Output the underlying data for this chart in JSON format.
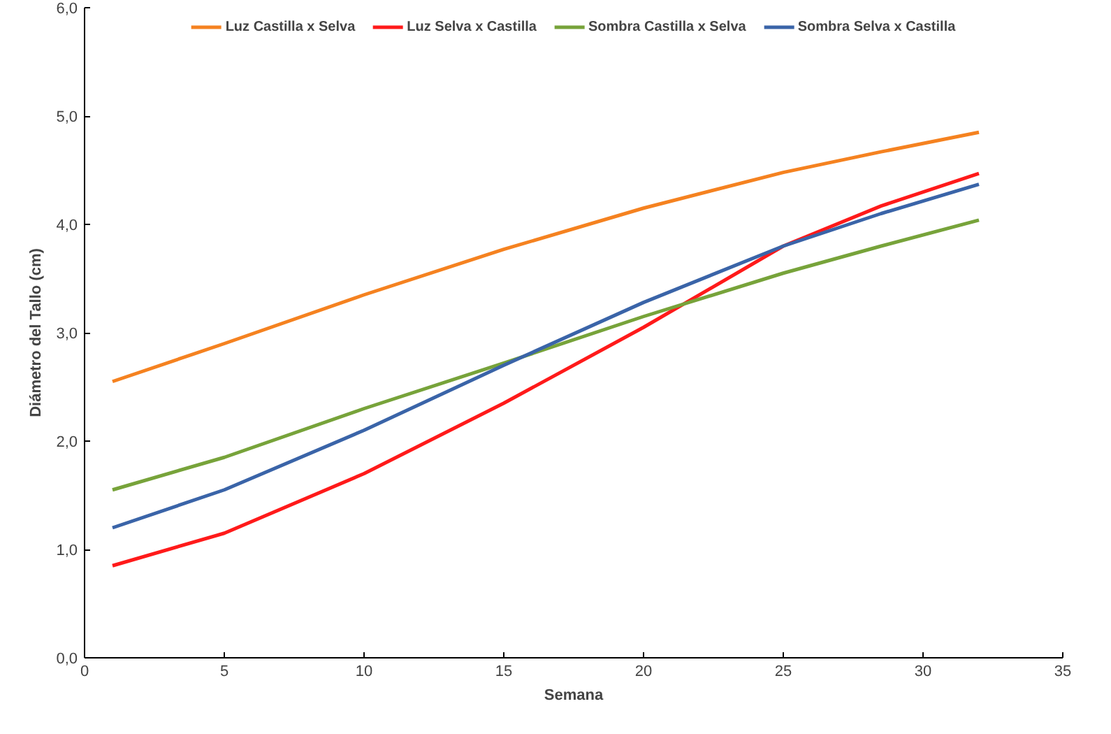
{
  "chart_data": {
    "type": "line",
    "xlabel": "Semana",
    "ylabel": "Diámetro del Tallo (cm)",
    "x": [
      1,
      5,
      10,
      15,
      20,
      25,
      28.5,
      32
    ],
    "series": [
      {
        "name": "Luz Castilla x Selva",
        "color": "#f58220",
        "values": [
          2.55,
          2.9,
          3.35,
          3.77,
          4.15,
          4.48,
          4.67,
          4.85
        ]
      },
      {
        "name": "Luz Selva x Castilla",
        "color": "#ff1a1a",
        "values": [
          0.85,
          1.15,
          1.7,
          2.35,
          3.05,
          3.8,
          4.17,
          4.47
        ]
      },
      {
        "name": "Sombra Castilla x Selva",
        "color": "#77a33a",
        "values": [
          1.55,
          1.85,
          2.3,
          2.72,
          3.15,
          3.55,
          3.8,
          4.04
        ]
      },
      {
        "name": "Sombra Selva x Castilla",
        "color": "#3a64a8",
        "values": [
          1.2,
          1.55,
          2.1,
          2.7,
          3.28,
          3.8,
          4.1,
          4.37
        ]
      }
    ],
    "xlim": [
      0,
      35
    ],
    "xticks": [
      0,
      5,
      10,
      15,
      20,
      25,
      30,
      35
    ],
    "ylim": [
      0,
      6
    ],
    "yticks": [
      {
        "value": 0,
        "label": "0,0"
      },
      {
        "value": 1,
        "label": "1,0"
      },
      {
        "value": 2,
        "label": "2,0"
      },
      {
        "value": 3,
        "label": "3,0"
      },
      {
        "value": 4,
        "label": "4,0"
      },
      {
        "value": 5,
        "label": "5,0"
      },
      {
        "value": 6,
        "label": "6,0"
      }
    ],
    "legend": "top",
    "grid": false,
    "marker": "none",
    "line_style": "solid"
  }
}
